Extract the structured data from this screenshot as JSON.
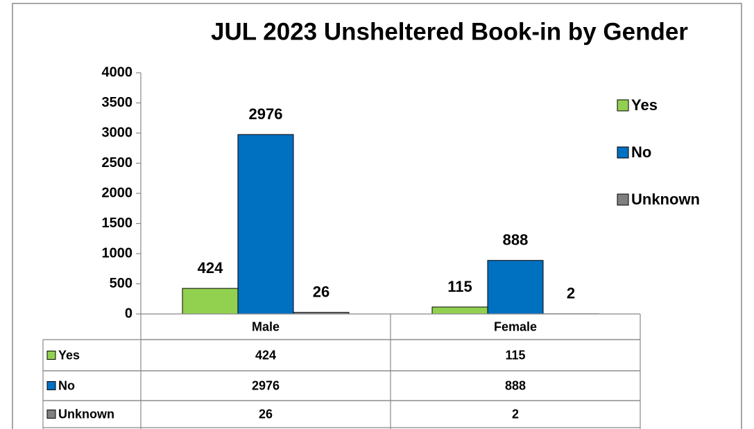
{
  "chart_data": {
    "type": "bar",
    "title": "JUL 2023 Unsheltered Book-in by Gender",
    "categories": [
      "Male",
      "Female"
    ],
    "series": [
      {
        "name": "Yes",
        "color": "#92d050",
        "values": [
          424,
          115
        ]
      },
      {
        "name": "No",
        "color": "#0070c0",
        "values": [
          2976,
          888
        ]
      },
      {
        "name": "Unknown",
        "color": "#808080",
        "values": [
          26,
          2
        ]
      }
    ],
    "ylim": [
      0,
      4000
    ],
    "yticks": [
      0,
      500,
      1000,
      1500,
      2000,
      2500,
      3000,
      3500,
      4000
    ],
    "legend": "right",
    "data_table": true
  }
}
